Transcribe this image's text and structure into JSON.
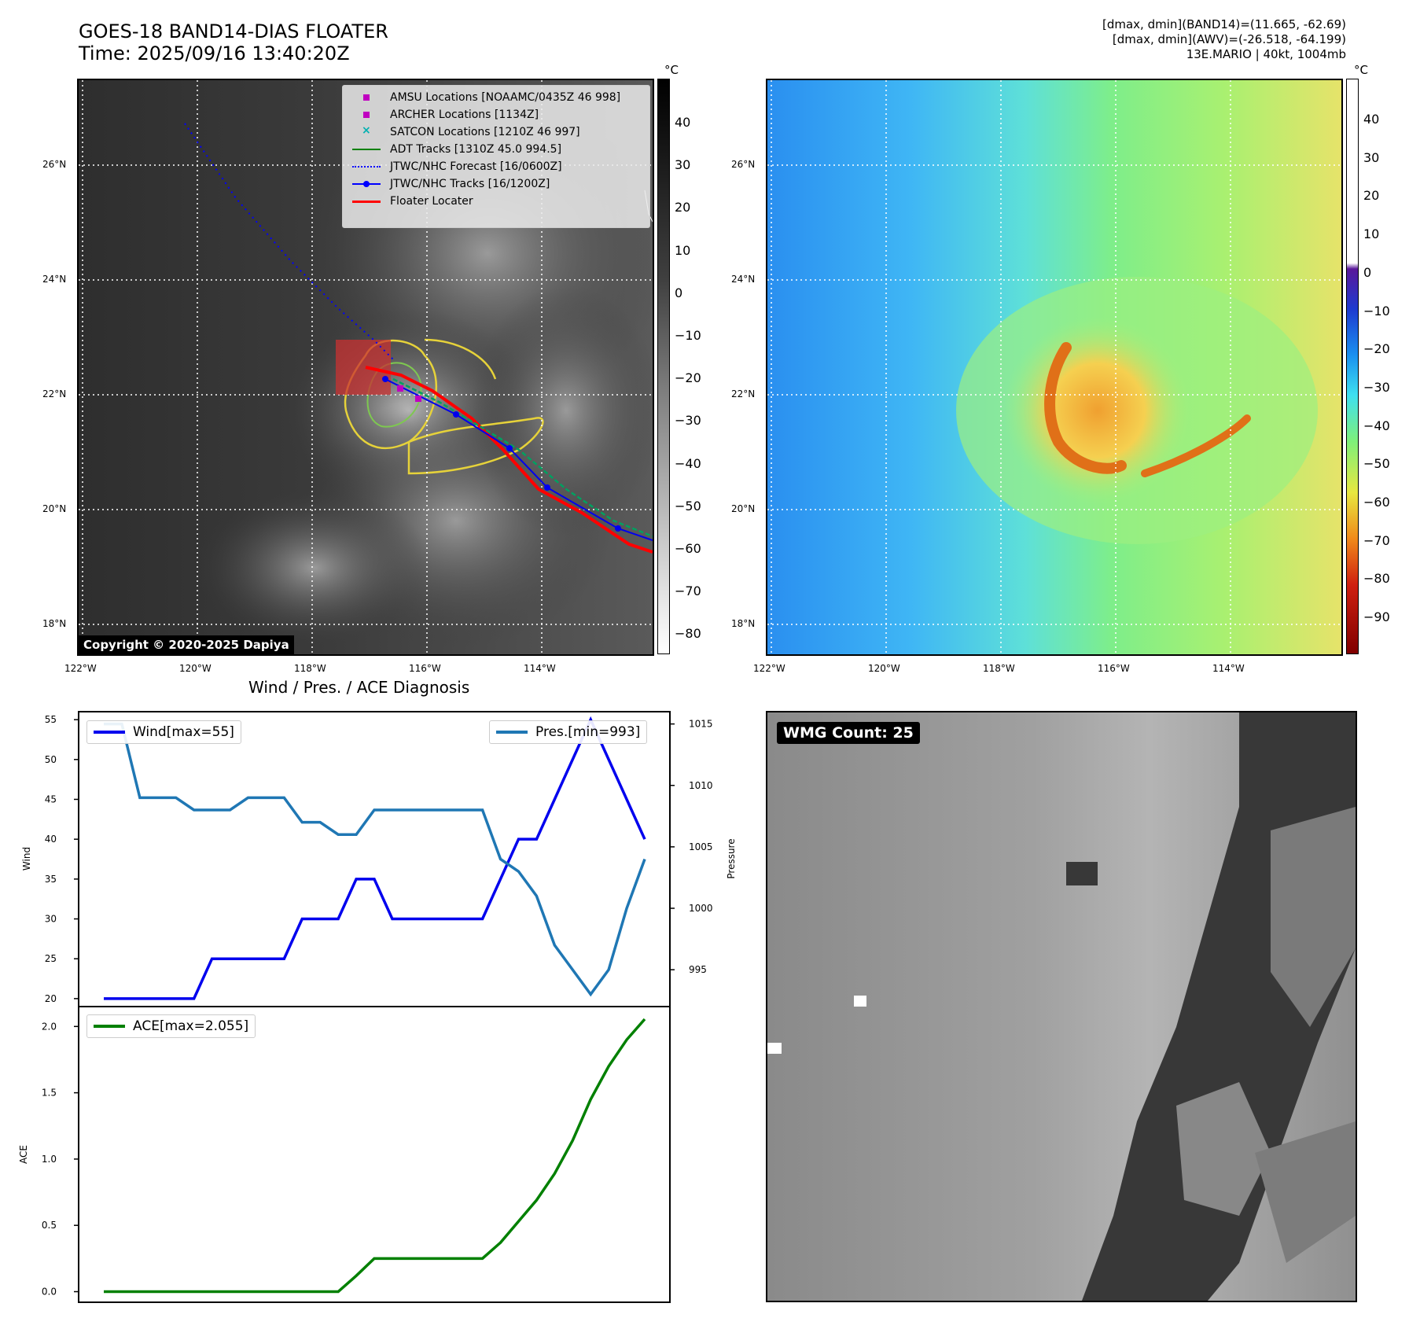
{
  "header": {
    "title": "GOES-18 BAND14-DIAS FLOATER",
    "time": "Time: 2025/09/16 13:40:20Z",
    "info_line1": "[dmax, dmin](BAND14)=(11.665, -62.69)",
    "info_line2": "[dmax, dmin](AWV)=(-26.518, -64.199)",
    "info_line3": "13E.MARIO | 40kt, 1004mb"
  },
  "map": {
    "lat_labels": [
      "26°N",
      "24°N",
      "22°N",
      "20°N",
      "18°N"
    ],
    "lon_labels": [
      "122°W",
      "120°W",
      "118°W",
      "116°W",
      "114°W"
    ],
    "copyright": "Copyright © 2020-2025 Dapiya",
    "legend": [
      {
        "label": "AMSU Locations [NOAAMC/0435Z 46 998]",
        "color": "#c000c0",
        "symbol": "square"
      },
      {
        "label": "ARCHER Locations [1134Z]",
        "color": "#c000c0",
        "symbol": "square"
      },
      {
        "label": "SATCON Locations [1210Z 46 997]",
        "color": "#00b0b0",
        "symbol": "x"
      },
      {
        "label": "ADT Tracks [1310Z 45.0 994.5]",
        "color": "#008000",
        "symbol": "line"
      },
      {
        "label": "JTWC/NHC Forecast [16/0600Z]",
        "color": "#0000ff",
        "symbol": "dotted"
      },
      {
        "label": "JTWC/NHC Tracks [16/1200Z]",
        "color": "#0000ff",
        "symbol": "line-dot"
      },
      {
        "label": "Floater Locater",
        "color": "#ff0000",
        "symbol": "line"
      }
    ]
  },
  "colorbar_gray": {
    "unit": "°C",
    "ticks": [
      "40",
      "30",
      "20",
      "10",
      "0",
      "−10",
      "−20",
      "−30",
      "−40",
      "−50",
      "−60",
      "−70",
      "−80"
    ]
  },
  "colorbar_awv": {
    "unit": "°C",
    "ticks": [
      "40",
      "30",
      "20",
      "10",
      "0",
      "−10",
      "−20",
      "−30",
      "−40",
      "−50",
      "−60",
      "−70",
      "−80",
      "−90"
    ]
  },
  "diagnosis_title": "Wind / Pres. / ACE Diagnosis",
  "wmg": {
    "badge": "WMG Count: 25"
  },
  "chart_data": [
    {
      "type": "line",
      "title": "Wind / Pres. / ACE Diagnosis",
      "ylabel": "Wind",
      "ylabel_right": "Pressure",
      "ylim": [
        19,
        56
      ],
      "ylim_right": [
        992,
        1016
      ],
      "yticks": [
        "55",
        "50",
        "45",
        "40",
        "35",
        "30",
        "25",
        "20"
      ],
      "yticks_right": [
        "1015",
        "1010",
        "1005",
        "1000",
        "995"
      ],
      "series": [
        {
          "name": "Wind[max=55]",
          "color": "#0000ee",
          "values": [
            20,
            20,
            20,
            20,
            20,
            20,
            25,
            25,
            25,
            25,
            25,
            30,
            30,
            30,
            35,
            35,
            30,
            30,
            30,
            30,
            30,
            30,
            35,
            40,
            40,
            45,
            50,
            55,
            50,
            45,
            40
          ]
        },
        {
          "name": "Pres.[min=993]",
          "color": "#1f77b4",
          "values": [
            1015,
            1015,
            1009,
            1009,
            1009,
            1008,
            1008,
            1008,
            1009,
            1009,
            1009,
            1007,
            1007,
            1006,
            1006,
            1008,
            1008,
            1008,
            1008,
            1008,
            1008,
            1008,
            1004,
            1003,
            1001,
            997,
            995,
            993,
            995,
            1000,
            1004
          ]
        }
      ]
    },
    {
      "type": "line",
      "ylabel": "ACE",
      "ylim": [
        -0.08,
        2.15
      ],
      "yticks": [
        "2.0",
        "1.5",
        "1.0",
        "0.5",
        "0.0"
      ],
      "series": [
        {
          "name": "ACE[max=2.055]",
          "color": "#008000",
          "values": [
            0,
            0,
            0,
            0,
            0,
            0,
            0,
            0,
            0,
            0,
            0,
            0,
            0,
            0,
            0.12,
            0.25,
            0.25,
            0.25,
            0.25,
            0.25,
            0.25,
            0.25,
            0.37,
            0.53,
            0.69,
            0.89,
            1.14,
            1.45,
            1.7,
            1.9,
            2.055
          ]
        }
      ]
    }
  ]
}
